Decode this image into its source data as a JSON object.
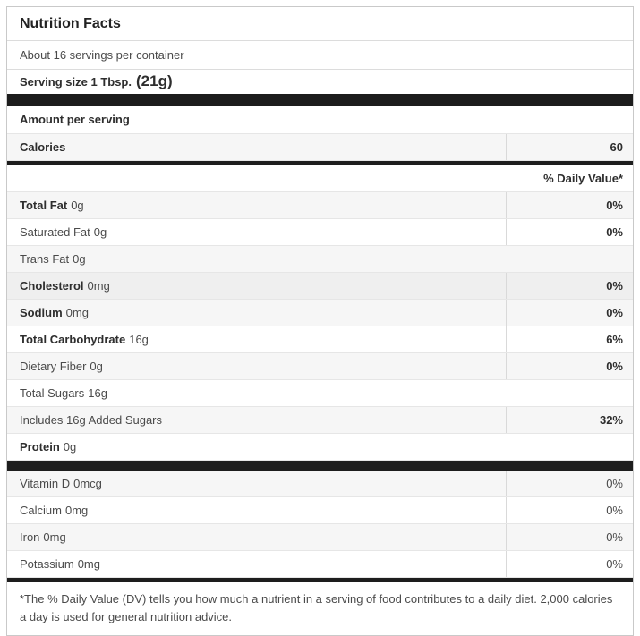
{
  "label": {
    "title": "Nutrition Facts",
    "servings_per_container": "About 16 servings per container",
    "serving_size_label": "Serving size 1 Tbsp.",
    "serving_size_weight": "(21g)",
    "amount_per_serving": "Amount per serving",
    "calories_label": "Calories",
    "calories_value": "60",
    "daily_value_header": "% Daily Value*",
    "nutrients": [
      {
        "name": "Total Fat",
        "amount": "0g",
        "dv": "0%",
        "bold": true,
        "shaded": true,
        "highlight": false,
        "full_width": false
      },
      {
        "name": "Saturated Fat",
        "amount": "0g",
        "dv": "0%",
        "bold": false,
        "shaded": false,
        "highlight": false,
        "full_width": false
      },
      {
        "name": "Trans Fat",
        "amount": "0g",
        "dv": "",
        "bold": false,
        "shaded": true,
        "highlight": false,
        "full_width": true
      },
      {
        "name": "Cholesterol",
        "amount": "0mg",
        "dv": "0%",
        "bold": true,
        "shaded": false,
        "highlight": true,
        "full_width": false
      },
      {
        "name": "Sodium",
        "amount": "0mg",
        "dv": "0%",
        "bold": true,
        "shaded": true,
        "highlight": false,
        "full_width": false
      },
      {
        "name": "Total Carbohydrate",
        "amount": "16g",
        "dv": "6%",
        "bold": true,
        "shaded": false,
        "highlight": false,
        "full_width": false
      },
      {
        "name": "Dietary Fiber",
        "amount": "0g",
        "dv": "0%",
        "bold": false,
        "shaded": true,
        "highlight": false,
        "full_width": false
      },
      {
        "name": "Total Sugars",
        "amount": "16g",
        "dv": "",
        "bold": false,
        "shaded": false,
        "highlight": false,
        "full_width": true
      },
      {
        "name": "Includes 16g Added Sugars",
        "amount": "",
        "dv": "32%",
        "bold": false,
        "shaded": true,
        "highlight": false,
        "full_width": false
      },
      {
        "name": "Protein",
        "amount": "0g",
        "dv": "",
        "bold": true,
        "shaded": false,
        "highlight": false,
        "full_width": true
      }
    ],
    "micronutrients": [
      {
        "name": "Vitamin D",
        "amount": "0mcg",
        "dv": "0%",
        "shaded": true
      },
      {
        "name": "Calcium",
        "amount": "0mg",
        "dv": "0%",
        "shaded": false
      },
      {
        "name": "Iron",
        "amount": "0mg",
        "dv": "0%",
        "shaded": true
      },
      {
        "name": "Potassium",
        "amount": "0mg",
        "dv": "0%",
        "shaded": false
      }
    ],
    "footnote": "*The % Daily Value (DV) tells you how much a nutrient in a serving of food contributes to a daily diet. 2,000 calories a day is used for general nutrition advice."
  },
  "colors": {
    "divider_bar": "#1d1d1d",
    "shaded_row": "#f6f6f6",
    "highlighted_row": "#efefef",
    "outer_border": "#c9c9c9",
    "row_separator": "#e6e6e6",
    "column_divider": "#d9d9d9"
  }
}
